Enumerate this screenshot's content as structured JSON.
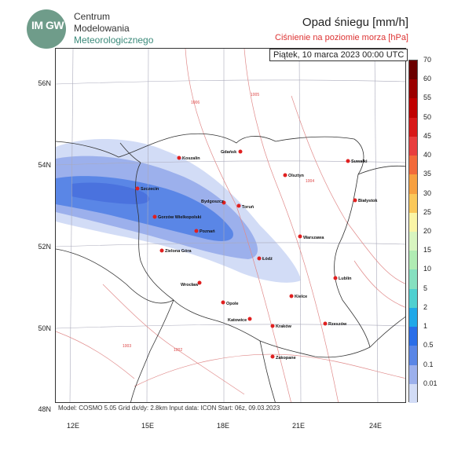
{
  "logo": {
    "text": "IM GW",
    "org_line1": "Centrum",
    "org_line2": "Modelowania",
    "org_line3": "Meteorologicznego"
  },
  "title": "Opad śniegu [mm/h]",
  "subtitle": "Ciśnienie na poziomie morza [hPa]",
  "date": "Piątek, 10 marca 2023 00:00 UTC",
  "footer": "Model: COSMO 5.05  Grid dx/dy: 2.8km  Input data: ICON  Start: 06z, 09.03.2023",
  "axes": {
    "lat_labels": [
      "56N",
      "54N",
      "52N",
      "50N",
      "48N"
    ],
    "lon_labels": [
      "12E",
      "15E",
      "18E",
      "21E",
      "24E"
    ]
  },
  "colorbar": {
    "labels": [
      "70",
      "60",
      "55",
      "50",
      "45",
      "40",
      "35",
      "30",
      "25",
      "20",
      "15",
      "10",
      "5",
      "2",
      "1",
      "0.5",
      "0.1",
      "0.01"
    ],
    "colors": [
      "#6b0000",
      "#9b0000",
      "#c00000",
      "#d81818",
      "#e83e3e",
      "#f26a3a",
      "#f7a040",
      "#fac85a",
      "#faf5a6",
      "#d8f5c0",
      "#b0ecb4",
      "#86e0c0",
      "#4fd0d0",
      "#20a8e8",
      "#2a6ee8",
      "#5a86e6",
      "#9cb0ec",
      "#d2dcf6"
    ]
  },
  "cities": [
    {
      "name": "Koszalin"
    },
    {
      "name": "Gdańsk"
    },
    {
      "name": "Suwałki"
    },
    {
      "name": "Szczecin"
    },
    {
      "name": "Olsztyn"
    },
    {
      "name": "Białystok"
    },
    {
      "name": "Bydgoszcz"
    },
    {
      "name": "Toruń"
    },
    {
      "name": "Gorzów Wielkopolski"
    },
    {
      "name": "Poznań"
    },
    {
      "name": "Warszawa"
    },
    {
      "name": "Zielona Góra"
    },
    {
      "name": "Łódź"
    },
    {
      "name": "Lublin"
    },
    {
      "name": "Wrocław"
    },
    {
      "name": "Kielce"
    },
    {
      "name": "Opole"
    },
    {
      "name": "Katowice"
    },
    {
      "name": "Kraków"
    },
    {
      "name": "Rzeszów"
    },
    {
      "name": "Zakopane"
    }
  ],
  "isobar_labels": [
    "1006",
    "1005",
    "1004",
    "1003",
    "1002"
  ]
}
